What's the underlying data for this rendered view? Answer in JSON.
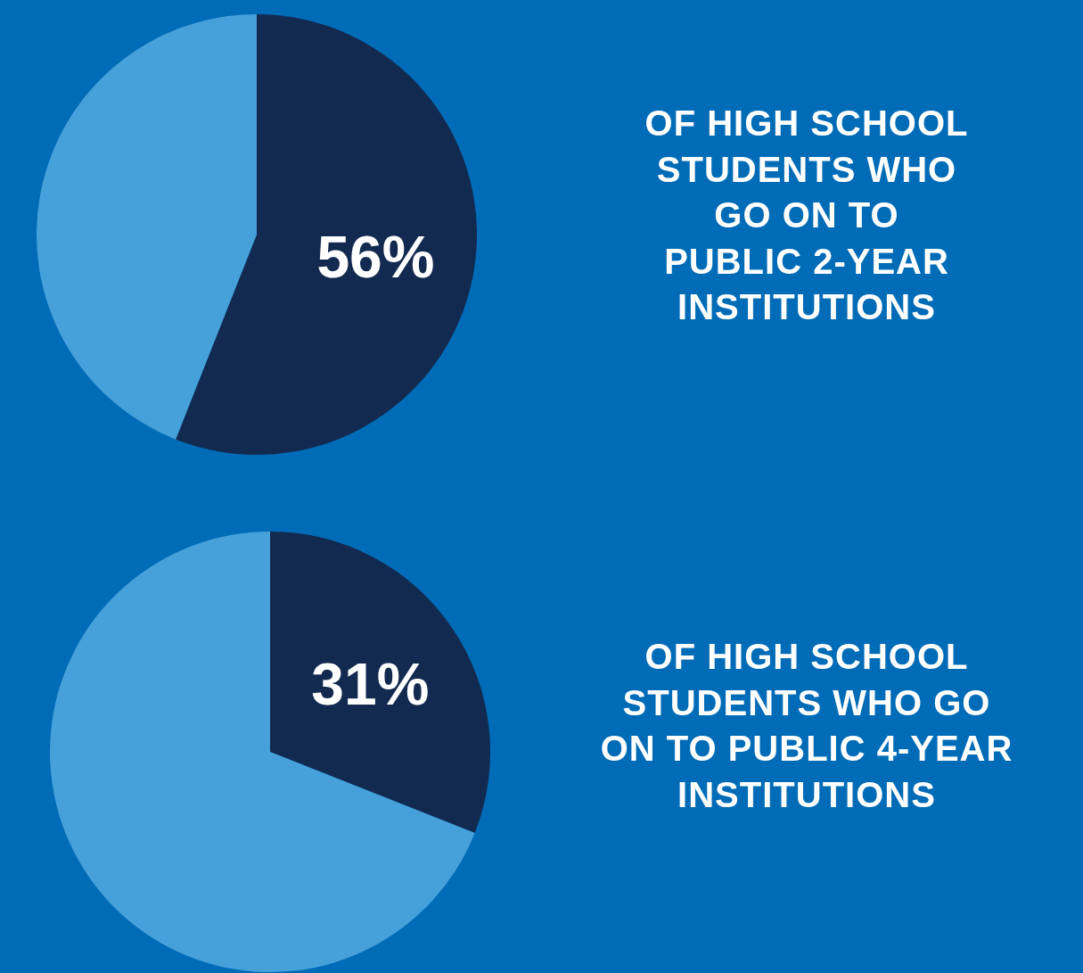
{
  "chart_data": [
    {
      "type": "pie",
      "title": "OF HIGH SCHOOL\nSTUDENTS WHO\nGO ON TO\nPUBLIC 2-YEAR\nINSTITUTIONS",
      "categories": [
        null,
        null
      ],
      "values": [
        56,
        44
      ],
      "colors": [
        "#132a50",
        "#46a1db"
      ],
      "value_labels": [
        "56%",
        null
      ]
    },
    {
      "type": "pie",
      "title": "OF HIGH SCHOOL\nSTUDENTS WHO GO\nON TO PUBLIC 4-YEAR\nINSTITUTIONS",
      "categories": [
        null,
        null
      ],
      "values": [
        31,
        69
      ],
      "colors": [
        "#132a50",
        "#46a1db"
      ],
      "value_labels": [
        "31%",
        null
      ]
    }
  ]
}
